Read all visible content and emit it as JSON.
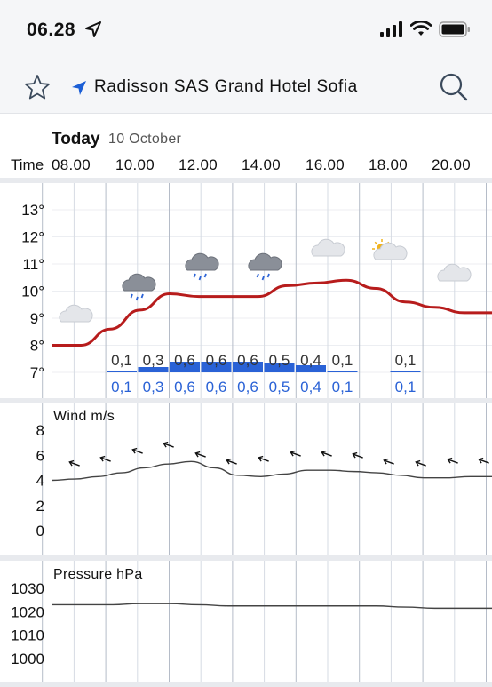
{
  "status": {
    "time": "06.28"
  },
  "nav": {
    "title": "Radisson SAS Grand Hotel Sofia"
  },
  "header": {
    "today": "Today",
    "date": "10 October",
    "time_label": "Time",
    "times": [
      "08.00",
      "10.00",
      "12.00",
      "14.00",
      "16.00",
      "18.00",
      "20.00"
    ]
  },
  "temperature": {
    "y_ticks": [
      "13°",
      "12°",
      "11°",
      "10°",
      "9°",
      "8°",
      "7°"
    ],
    "ylim": [
      7,
      13
    ],
    "x": [
      0,
      1,
      2,
      3,
      4,
      5,
      6,
      7,
      8,
      9,
      10,
      11,
      12,
      13,
      14,
      15
    ],
    "values": [
      8.0,
      8.0,
      8.6,
      9.3,
      9.9,
      9.8,
      9.8,
      9.8,
      10.2,
      10.3,
      10.4,
      10.1,
      9.6,
      9.4,
      9.2,
      9.2
    ],
    "icons": [
      "cloud",
      "cloud",
      "rain-cloud",
      "rain-cloud",
      "cloud",
      "cloud",
      "rain-cloud",
      "rain-cloud",
      "cloud",
      "cloud",
      "cloud",
      "partly-cloudy",
      "partly-cloudy",
      "partly-cloudy",
      "cloud",
      "cloud"
    ],
    "precip_top": [
      "",
      "",
      "",
      "0,1",
      "0,3",
      "0,6",
      "0,6",
      "0,6",
      "0,5",
      "0,4",
      "0,1",
      "",
      "0,1",
      "",
      "",
      ""
    ],
    "precip_bottom": [
      "",
      "",
      "",
      "0,1",
      "0,3",
      "0,6",
      "0,6",
      "0,6",
      "0,5",
      "0,4",
      "0,1",
      "",
      "0,1",
      "",
      "",
      ""
    ],
    "precip_bar": [
      0,
      0,
      0,
      0.1,
      0.3,
      0.6,
      0.6,
      0.6,
      0.5,
      0.4,
      0.1,
      0,
      0.1,
      0,
      0,
      0
    ],
    "color_line": "#b71c1c",
    "color_precip": "#2a62d6"
  },
  "wind": {
    "title": "Wind m/s",
    "y_ticks": [
      "8",
      "6",
      "4",
      "2",
      "0"
    ],
    "ylim": [
      0,
      8
    ],
    "values": [
      4.0,
      4.1,
      4.3,
      4.6,
      5.0,
      5.3,
      5.5,
      5.0,
      4.4,
      4.3,
      4.5,
      4.8,
      4.8,
      4.7,
      4.6,
      4.4,
      4.2,
      4.2,
      4.3,
      4.3
    ]
  },
  "pressure": {
    "title": "Pressure hPa",
    "y_ticks": [
      "1030",
      "1020",
      "1010",
      "1000"
    ],
    "ylim": [
      995,
      1035
    ],
    "values": [
      1023,
      1023,
      1023,
      1023.5,
      1023.5,
      1023,
      1022.5,
      1022.5,
      1022.5,
      1022.5,
      1022.5,
      1022.5,
      1022,
      1021.5,
      1021.5,
      1021.5
    ]
  }
}
